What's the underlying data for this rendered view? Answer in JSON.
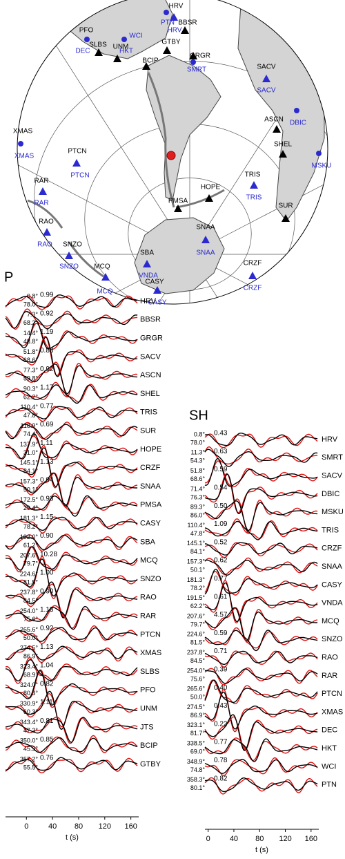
{
  "map": {
    "labels": [
      {
        "text": "HRV",
        "color": "#000"
      },
      {
        "text": "PTN",
        "color": "#2a2ad0"
      },
      {
        "text": "HRV",
        "color": "#2a2ad0"
      },
      {
        "text": "BBSR",
        "color": "#000"
      },
      {
        "text": "PFO",
        "color": "#000"
      },
      {
        "text": "DEC",
        "color": "#2a2ad0"
      },
      {
        "text": "WCI",
        "color": "#2a2ad0"
      },
      {
        "text": "SLBS",
        "color": "#000"
      },
      {
        "text": "UNM",
        "color": "#000"
      },
      {
        "text": "HKT",
        "color": "#2a2ad0"
      },
      {
        "text": "GTBY",
        "color": "#000"
      },
      {
        "text": "GRGR",
        "color": "#000"
      },
      {
        "text": "BCIP",
        "color": "#000"
      },
      {
        "text": "SMRT",
        "color": "#2a2ad0"
      },
      {
        "text": "SACV",
        "color": "#000"
      },
      {
        "text": "SACV",
        "color": "#2a2ad0"
      },
      {
        "text": "DBIC",
        "color": "#2a2ad0"
      },
      {
        "text": "ASCN",
        "color": "#000"
      },
      {
        "text": "SHEL",
        "color": "#000"
      },
      {
        "text": "MSKU",
        "color": "#2a2ad0"
      },
      {
        "text": "XMAS",
        "color": "#000"
      },
      {
        "text": "XMAS",
        "color": "#2a2ad0"
      },
      {
        "text": "PTCN",
        "color": "#000"
      },
      {
        "text": "PTCN",
        "color": "#2a2ad0"
      },
      {
        "text": "RAR",
        "color": "#000"
      },
      {
        "text": "RAR",
        "color": "#2a2ad0"
      },
      {
        "text": "TRIS",
        "color": "#000"
      },
      {
        "text": "TRIS",
        "color": "#2a2ad0"
      },
      {
        "text": "HOPE",
        "color": "#000"
      },
      {
        "text": "PMSA",
        "color": "#000"
      },
      {
        "text": "SUR",
        "color": "#000"
      },
      {
        "text": "RAO",
        "color": "#000"
      },
      {
        "text": "RAO",
        "color": "#2a2ad0"
      },
      {
        "text": "SNZO",
        "color": "#000"
      },
      {
        "text": "SNZO",
        "color": "#2a2ad0"
      },
      {
        "text": "SNAA",
        "color": "#000"
      },
      {
        "text": "SNAA",
        "color": "#2a2ad0"
      },
      {
        "text": "SBA",
        "color": "#000"
      },
      {
        "text": "VNDA",
        "color": "#2a2ad0"
      },
      {
        "text": "MCQ",
        "color": "#000"
      },
      {
        "text": "MCQ",
        "color": "#2a2ad0"
      },
      {
        "text": "CASY",
        "color": "#000"
      },
      {
        "text": "CASY",
        "color": "#2a2ad0"
      },
      {
        "text": "CRZF",
        "color": "#000"
      },
      {
        "text": "CRZF",
        "color": "#2a2ad0"
      }
    ],
    "markers": [
      {
        "shape": "circle",
        "color": "#2a2ad0"
      },
      {
        "shape": "triangle",
        "color": "#2a2ad0"
      },
      {
        "shape": "triangle",
        "color": "#000"
      },
      {
        "shape": "circle",
        "color": "#2a2ad0"
      },
      {
        "shape": "circle",
        "color": "#2a2ad0"
      },
      {
        "shape": "triangle",
        "color": "#000"
      },
      {
        "shape": "triangle",
        "color": "#000"
      },
      {
        "shape": "triangle",
        "color": "#000"
      },
      {
        "shape": "triangle",
        "color": "#000"
      },
      {
        "shape": "triangle",
        "color": "#000"
      },
      {
        "shape": "circle",
        "color": "#2a2ad0"
      },
      {
        "shape": "triangle",
        "color": "#2a2ad0"
      },
      {
        "shape": "circle",
        "color": "#2a2ad0"
      },
      {
        "shape": "triangle",
        "color": "#000"
      },
      {
        "shape": "triangle",
        "color": "#000"
      },
      {
        "shape": "circle",
        "color": "#2a2ad0"
      },
      {
        "shape": "circle",
        "color": "#2a2ad0"
      },
      {
        "shape": "triangle",
        "color": "#2a2ad0"
      },
      {
        "shape": "triangle",
        "color": "#2a2ad0"
      },
      {
        "shape": "triangle",
        "color": "#2a2ad0"
      },
      {
        "shape": "triangle",
        "color": "#000"
      },
      {
        "shape": "triangle",
        "color": "#000"
      },
      {
        "shape": "triangle",
        "color": "#000"
      },
      {
        "shape": "triangle",
        "color": "#2a2ad0"
      },
      {
        "shape": "triangle",
        "color": "#2a2ad0"
      },
      {
        "shape": "triangle",
        "color": "#2a2ad0"
      },
      {
        "shape": "triangle",
        "color": "#2a2ad0"
      },
      {
        "shape": "triangle",
        "color": "#2a2ad0"
      },
      {
        "shape": "triangle",
        "color": "#2a2ad0"
      },
      {
        "shape": "triangle",
        "color": "#2a2ad0"
      },
      {
        "shape": "event",
        "color": "#e02020"
      }
    ]
  },
  "p_panel": {
    "title": "P",
    "xlabel": "t (s)",
    "xlim": [
      -32,
      172
    ],
    "xticks": [
      0,
      40,
      80,
      120,
      160
    ],
    "observed_color": "#000",
    "synthetic_color": "#e01010",
    "traces": [
      {
        "station": "HRV",
        "azimuth": "0.8°",
        "distance": "78.0°",
        "ratio": "0.99"
      },
      {
        "station": "BBSR",
        "azimuth": "7.3°",
        "distance": "68.2°",
        "ratio": "0.92"
      },
      {
        "station": "GRGR",
        "azimuth": "14.4°",
        "distance": "48.8°",
        "ratio": "1.19"
      },
      {
        "station": "SACV",
        "azimuth": "51.8°",
        "distance": "68.6°",
        "ratio": "0.83"
      },
      {
        "station": "ASCN",
        "azimuth": "77.3°",
        "distance": "59.8°",
        "ratio": "0.92"
      },
      {
        "station": "SHEL",
        "azimuth": "90.3°",
        "distance": "62.2°",
        "ratio": "1.17"
      },
      {
        "station": "TRIS",
        "azimuth": "110.4°",
        "distance": "47.8°",
        "ratio": "0.77"
      },
      {
        "station": "SUR",
        "azimuth": "118.9°",
        "distance": "74.4°",
        "ratio": "0.69"
      },
      {
        "station": "HOPE",
        "azimuth": "137.9°",
        "distance": "31.0°",
        "ratio": "1.11"
      },
      {
        "station": "CRZF",
        "azimuth": "145.1°",
        "distance": "84.1°",
        "ratio": "1.13"
      },
      {
        "station": "SNAA",
        "azimuth": "157.3°",
        "distance": "50.1°",
        "ratio": "0.94"
      },
      {
        "station": "PMSA",
        "azimuth": "172.5°",
        "distance": "29.4°",
        "ratio": "0.93"
      },
      {
        "station": "CASY",
        "azimuth": "181.3°",
        "distance": "78.2°",
        "ratio": "1.15"
      },
      {
        "station": "SBA",
        "azimuth": "192.0°",
        "distance": "61.2°",
        "ratio": "0.90"
      },
      {
        "station": "MCQ",
        "azimuth": "207.6°",
        "distance": "79.7°",
        "ratio": "10.28"
      },
      {
        "station": "SNZO",
        "azimuth": "224.6°",
        "distance": "81.5°",
        "ratio": "1.00"
      },
      {
        "station": "RAO",
        "azimuth": "237.8°",
        "distance": "84.5°",
        "ratio": "0.90"
      },
      {
        "station": "RAR",
        "azimuth": "254.0°",
        "distance": "75.6°",
        "ratio": "1.13"
      },
      {
        "station": "PTCN",
        "azimuth": "265.6°",
        "distance": "50.0°",
        "ratio": "0.92"
      },
      {
        "station": "XMAS",
        "azimuth": "274.5°",
        "distance": "86.9°",
        "ratio": "1.13"
      },
      {
        "station": "SLBS",
        "azimuth": "323.4°",
        "distance": "68.9°",
        "ratio": "1.04"
      },
      {
        "station": "PFO",
        "azimuth": "324.0°",
        "distance": "80.3°",
        "ratio": "0.82"
      },
      {
        "station": "UNM",
        "azimuth": "330.9°",
        "distance": "60.3°",
        "ratio": "1.11"
      },
      {
        "station": "JTS",
        "azimuth": "343.4°",
        "distance": "47.3°",
        "ratio": "0.81"
      },
      {
        "station": "BCIP",
        "azimuth": "350.0°",
        "distance": "45.3°",
        "ratio": "0.85"
      },
      {
        "station": "GTBY",
        "azimuth": "357.2°",
        "distance": "55.5°",
        "ratio": "0.76"
      }
    ]
  },
  "sh_panel": {
    "title": "SH",
    "xlabel": "t (s)",
    "xlim": [
      -5,
      172
    ],
    "xticks": [
      0,
      40,
      80,
      120,
      160
    ],
    "observed_color": "#000",
    "synthetic_color": "#e01010",
    "traces": [
      {
        "station": "HRV",
        "azimuth": "0.8°",
        "distance": "78.0°",
        "ratio": "0.43"
      },
      {
        "station": "SMRT",
        "azimuth": "11.3°",
        "distance": "54.3°",
        "ratio": "0.63"
      },
      {
        "station": "SACV",
        "azimuth": "51.8°",
        "distance": "68.6°",
        "ratio": "0.59"
      },
      {
        "station": "DBIC",
        "azimuth": "71.4°",
        "distance": "76.3°",
        "ratio": "0.54"
      },
      {
        "station": "MSKU",
        "azimuth": "89.3°",
        "distance": "86.0°",
        "ratio": "0.50"
      },
      {
        "station": "TRIS",
        "azimuth": "110.4°",
        "distance": "47.8°",
        "ratio": "1.09"
      },
      {
        "station": "CRZF",
        "azimuth": "145.1°",
        "distance": "84.1°",
        "ratio": "0.52"
      },
      {
        "station": "SNAA",
        "azimuth": "157.3°",
        "distance": "50.1°",
        "ratio": "0.62"
      },
      {
        "station": "CASY",
        "azimuth": "181.3°",
        "distance": "78.2°",
        "ratio": "0.77"
      },
      {
        "station": "VNDA",
        "azimuth": "191.5°",
        "distance": "62.2°",
        "ratio": "0.61"
      },
      {
        "station": "MCQ",
        "azimuth": "207.6°",
        "distance": "79.7°",
        "ratio": "4.57"
      },
      {
        "station": "SNZO",
        "azimuth": "224.6°",
        "distance": "81.5°",
        "ratio": "0.59"
      },
      {
        "station": "RAO",
        "azimuth": "237.8°",
        "distance": "84.5°",
        "ratio": "0.71"
      },
      {
        "station": "RAR",
        "azimuth": "254.0°",
        "distance": "75.6°",
        "ratio": "0.39"
      },
      {
        "station": "PTCN",
        "azimuth": "265.6°",
        "distance": "50.0°",
        "ratio": "0.40"
      },
      {
        "station": "XMAS",
        "azimuth": "274.5°",
        "distance": "86.9°",
        "ratio": "0.43"
      },
      {
        "station": "DEC",
        "azimuth": "323.1°",
        "distance": "81.7°",
        "ratio": "0.22"
      },
      {
        "station": "HKT",
        "azimuth": "338.5°",
        "distance": "69.0°",
        "ratio": "0.77"
      },
      {
        "station": "WCI",
        "azimuth": "348.9°",
        "distance": "74.8°",
        "ratio": "0.78"
      },
      {
        "station": "PTN",
        "azimuth": "358.3°",
        "distance": "80.1°",
        "ratio": "0.82"
      }
    ]
  }
}
